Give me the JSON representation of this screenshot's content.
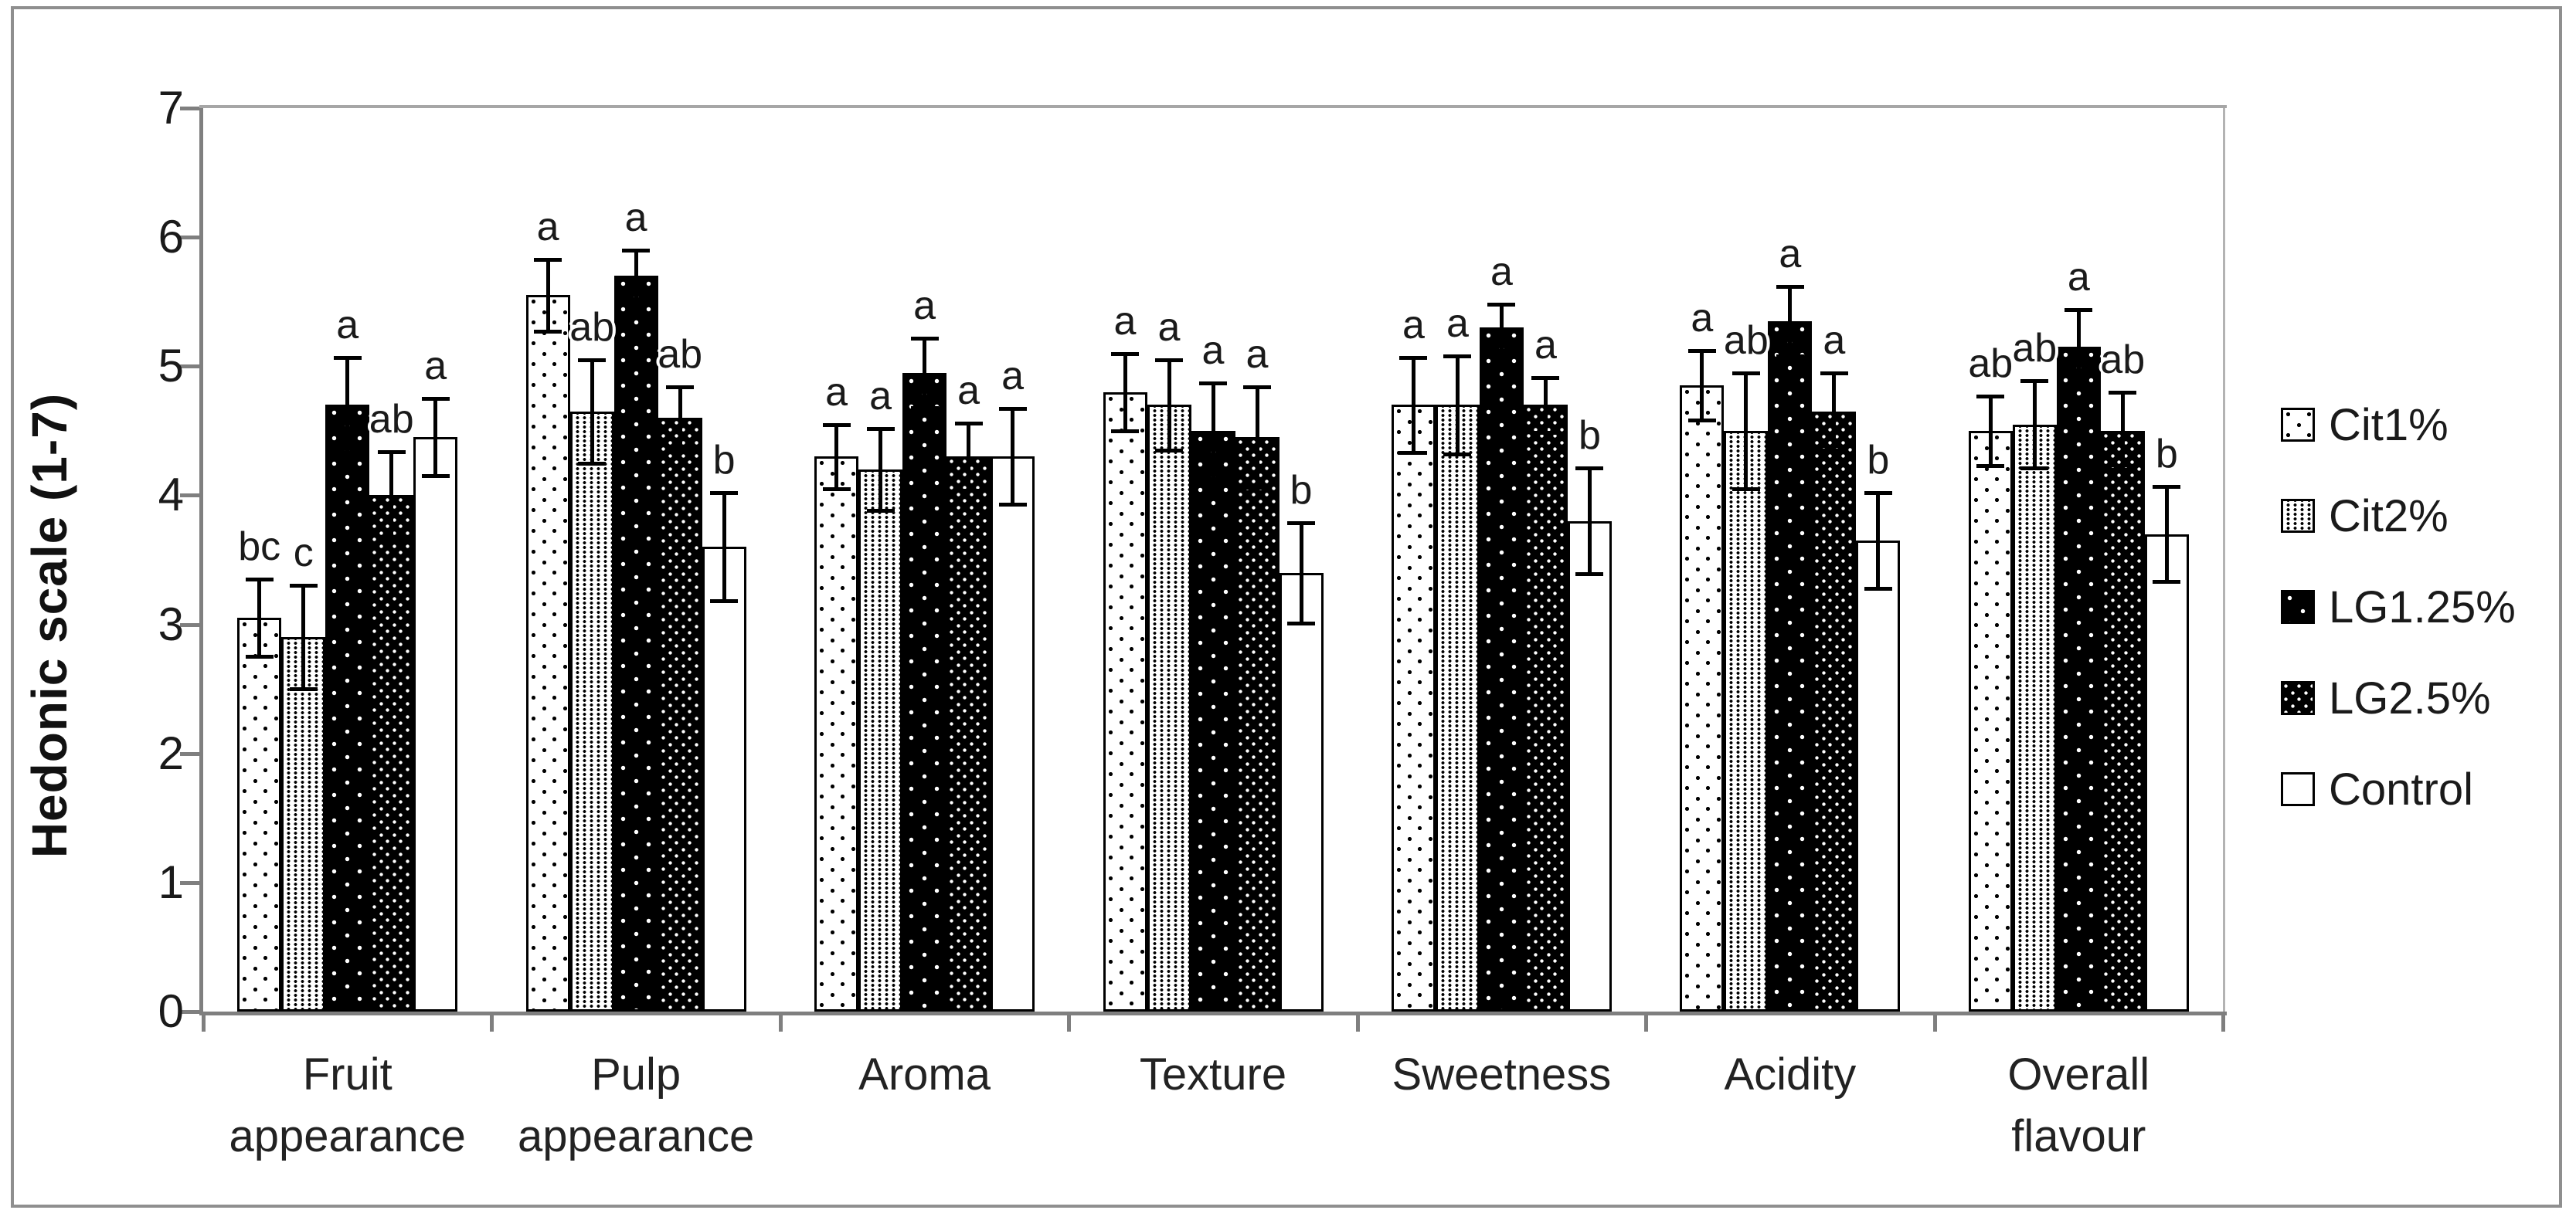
{
  "figure": {
    "frame_border_color": "#8f8f8f",
    "background_color": "#ffffff",
    "axis_color": "#7f7f7f",
    "bar_border_color": "#000000"
  },
  "chart_data": {
    "type": "bar",
    "title": "",
    "xlabel": "",
    "ylabel": "Hedonic scale (1-7)",
    "ylim": [
      0,
      7
    ],
    "y_ticks": [
      0,
      1,
      2,
      3,
      4,
      5,
      6,
      7
    ],
    "grid": false,
    "error_bars": true,
    "legend_position": "right",
    "categories": [
      "Fruit appearance",
      "Pulp appearance",
      "Aroma",
      "Texture",
      "Sweetness",
      "Acidity",
      "Overall flavour"
    ],
    "category_label_lines": [
      [
        "Fruit",
        "appearance"
      ],
      [
        "Pulp",
        "appearance"
      ],
      [
        "Aroma"
      ],
      [
        "Texture"
      ],
      [
        "Sweetness"
      ],
      [
        "Acidity"
      ],
      [
        "Overall",
        "flavour"
      ]
    ],
    "series": [
      {
        "name": "Cit1%",
        "pattern": "white-with-sparse-black-dots",
        "fill": "#ffffff",
        "dot_color": "#000000",
        "values": [
          3.05,
          5.55,
          4.3,
          4.8,
          4.7,
          4.85,
          4.5
        ],
        "errors": [
          0.3,
          0.28,
          0.25,
          0.3,
          0.37,
          0.27,
          0.27
        ],
        "sig_letters": [
          "bc",
          "a",
          "a",
          "a",
          "a",
          "a",
          "ab"
        ]
      },
      {
        "name": "Cit2%",
        "pattern": "white-with-dense-black-dot-grid",
        "fill": "#ffffff",
        "dot_color": "#000000",
        "values": [
          2.9,
          4.65,
          4.2,
          4.7,
          4.7,
          4.5,
          4.55
        ],
        "errors": [
          0.4,
          0.4,
          0.32,
          0.35,
          0.38,
          0.45,
          0.34
        ],
        "sig_letters": [
          "c",
          "ab",
          "a",
          "a",
          "a",
          "ab",
          "ab"
        ]
      },
      {
        "name": "LG1.25%",
        "pattern": "black-with-sparse-white-dots",
        "fill": "#000000",
        "dot_color": "#ffffff",
        "values": [
          4.7,
          5.7,
          4.95,
          4.5,
          5.3,
          5.35,
          5.15
        ],
        "errors": [
          0.37,
          0.2,
          0.27,
          0.37,
          0.18,
          0.27,
          0.29
        ],
        "sig_letters": [
          "a",
          "a",
          "a",
          "a",
          "a",
          "a",
          "a"
        ]
      },
      {
        "name": "LG2.5%",
        "pattern": "black-with-medium-white-dots",
        "fill": "#000000",
        "dot_color": "#ffffff",
        "values": [
          4.0,
          4.6,
          4.3,
          4.45,
          4.7,
          4.65,
          4.5
        ],
        "errors": [
          0.34,
          0.24,
          0.26,
          0.39,
          0.21,
          0.3,
          0.3
        ],
        "sig_letters": [
          "ab",
          "ab",
          "a",
          "a",
          "a",
          "a",
          "ab"
        ]
      },
      {
        "name": "Control",
        "pattern": "plain-white",
        "fill": "#ffffff",
        "dot_color": null,
        "values": [
          4.45,
          3.6,
          4.3,
          3.4,
          3.8,
          3.65,
          3.7
        ],
        "errors": [
          0.3,
          0.42,
          0.37,
          0.39,
          0.41,
          0.37,
          0.37
        ],
        "sig_letters": [
          "a",
          "b",
          "a",
          "b",
          "b",
          "b",
          "b"
        ]
      }
    ]
  }
}
